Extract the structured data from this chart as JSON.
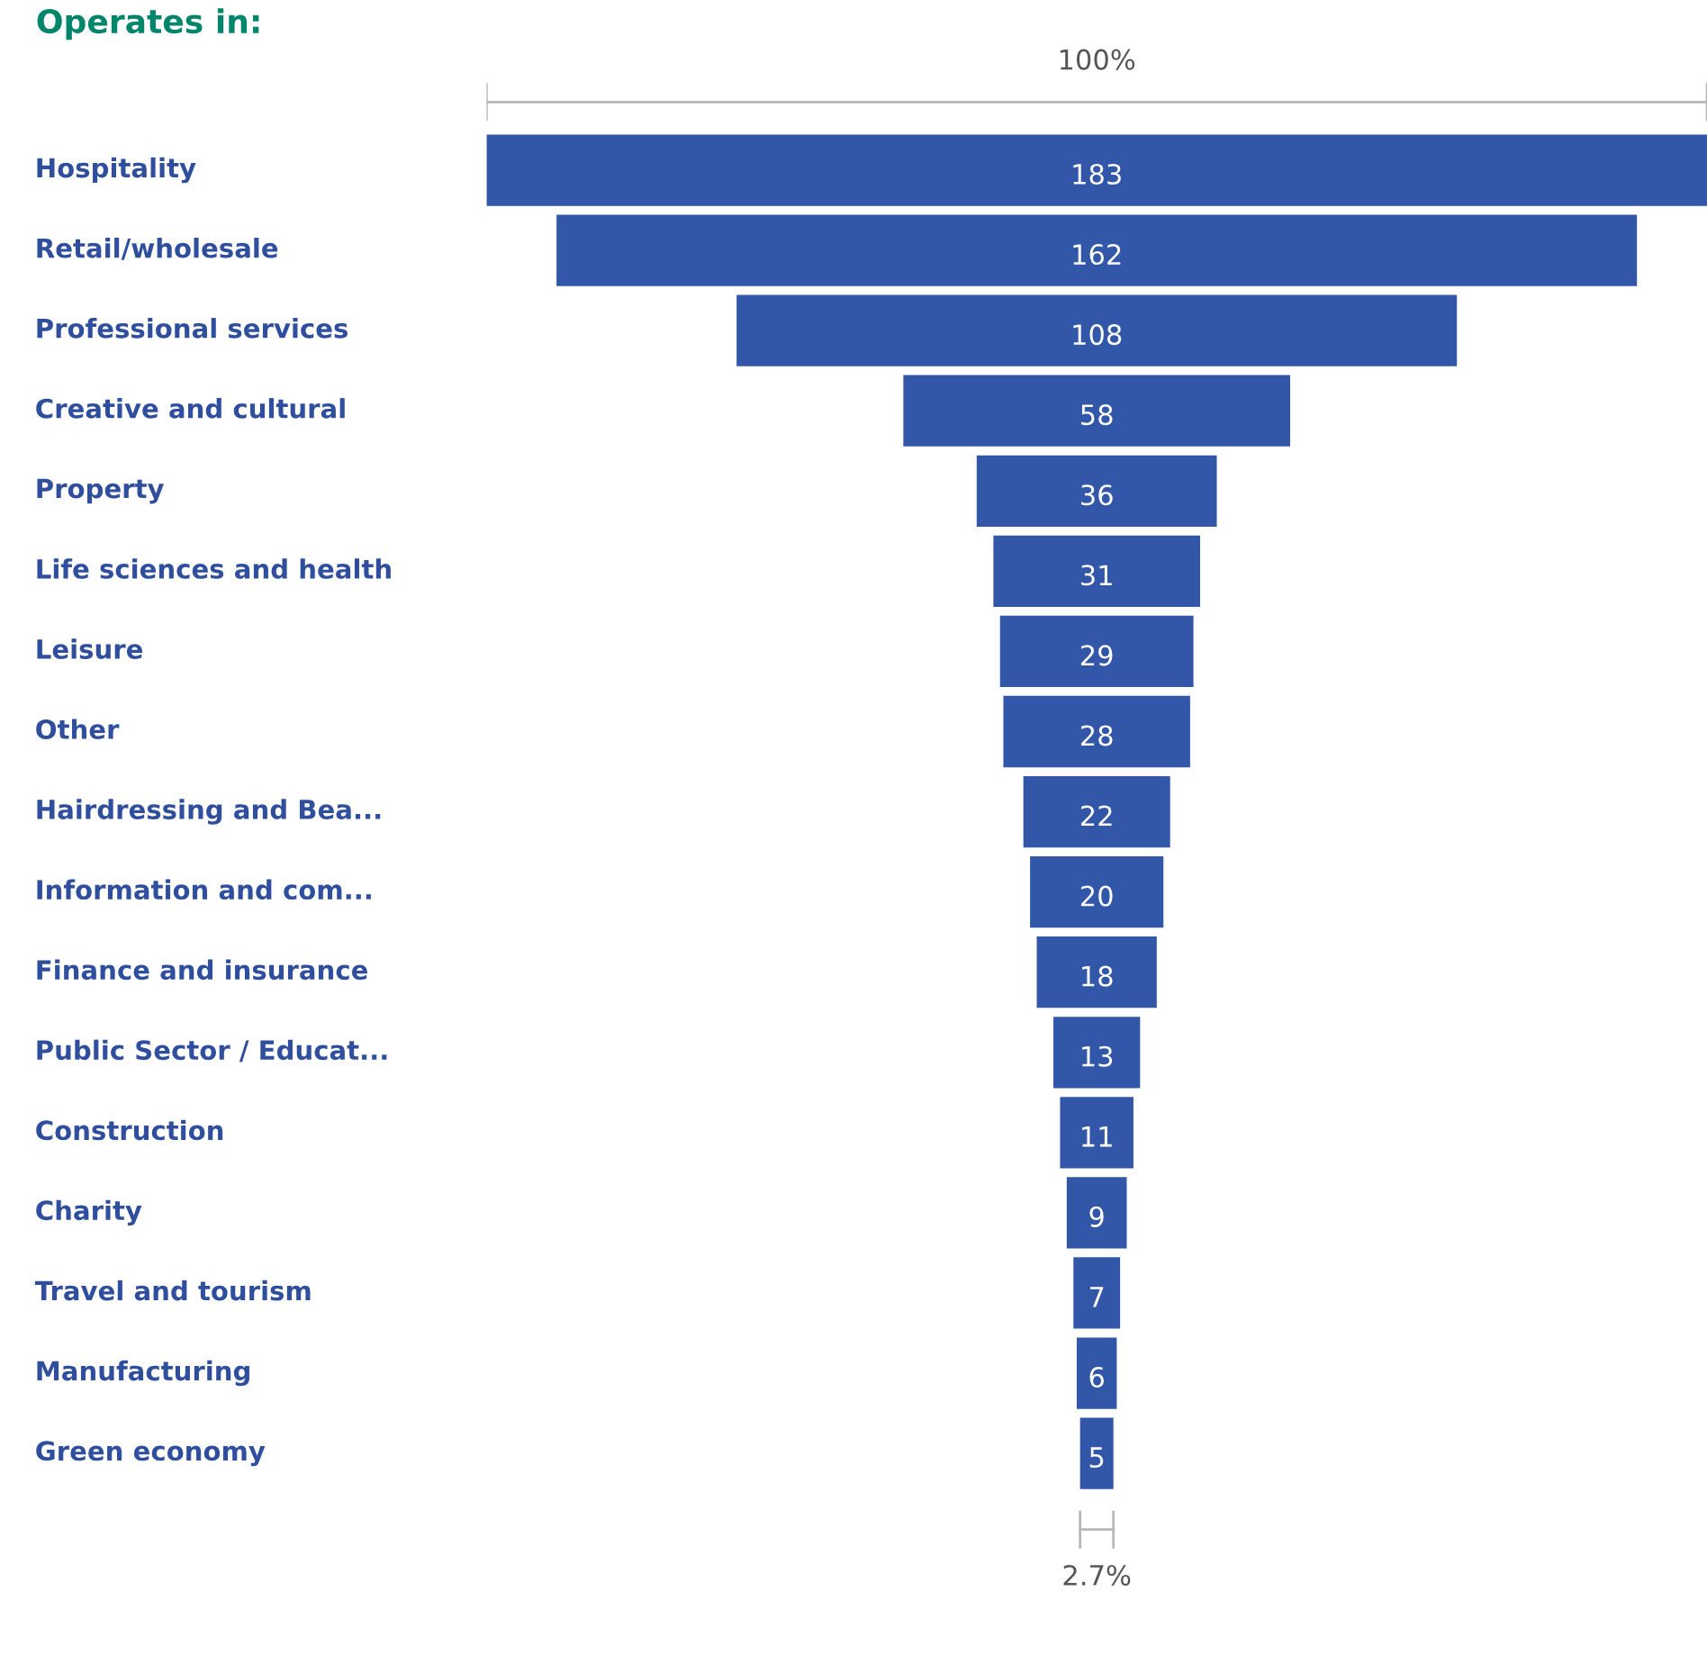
{
  "chart_data": {
    "type": "other",
    "title": "Operates in:",
    "categories": [
      "Hospitality",
      "Retail/wholesale",
      "Professional services",
      "Creative and cultural",
      "Property",
      "Life sciences and health",
      "Leisure",
      "Other",
      "Hairdressing and Bea...",
      "Information and com...",
      "Finance and insurance",
      "Public Sector / Educat...",
      "Construction",
      "Charity",
      "Travel and tourism",
      "Manufacturing",
      "Green economy"
    ],
    "values": [
      183,
      162,
      108,
      58,
      36,
      31,
      29,
      28,
      22,
      20,
      18,
      13,
      11,
      9,
      7,
      6,
      5
    ],
    "color": "#3257a8",
    "data_labels": true,
    "annotations": [
      "100%",
      "2.7%"
    ]
  }
}
